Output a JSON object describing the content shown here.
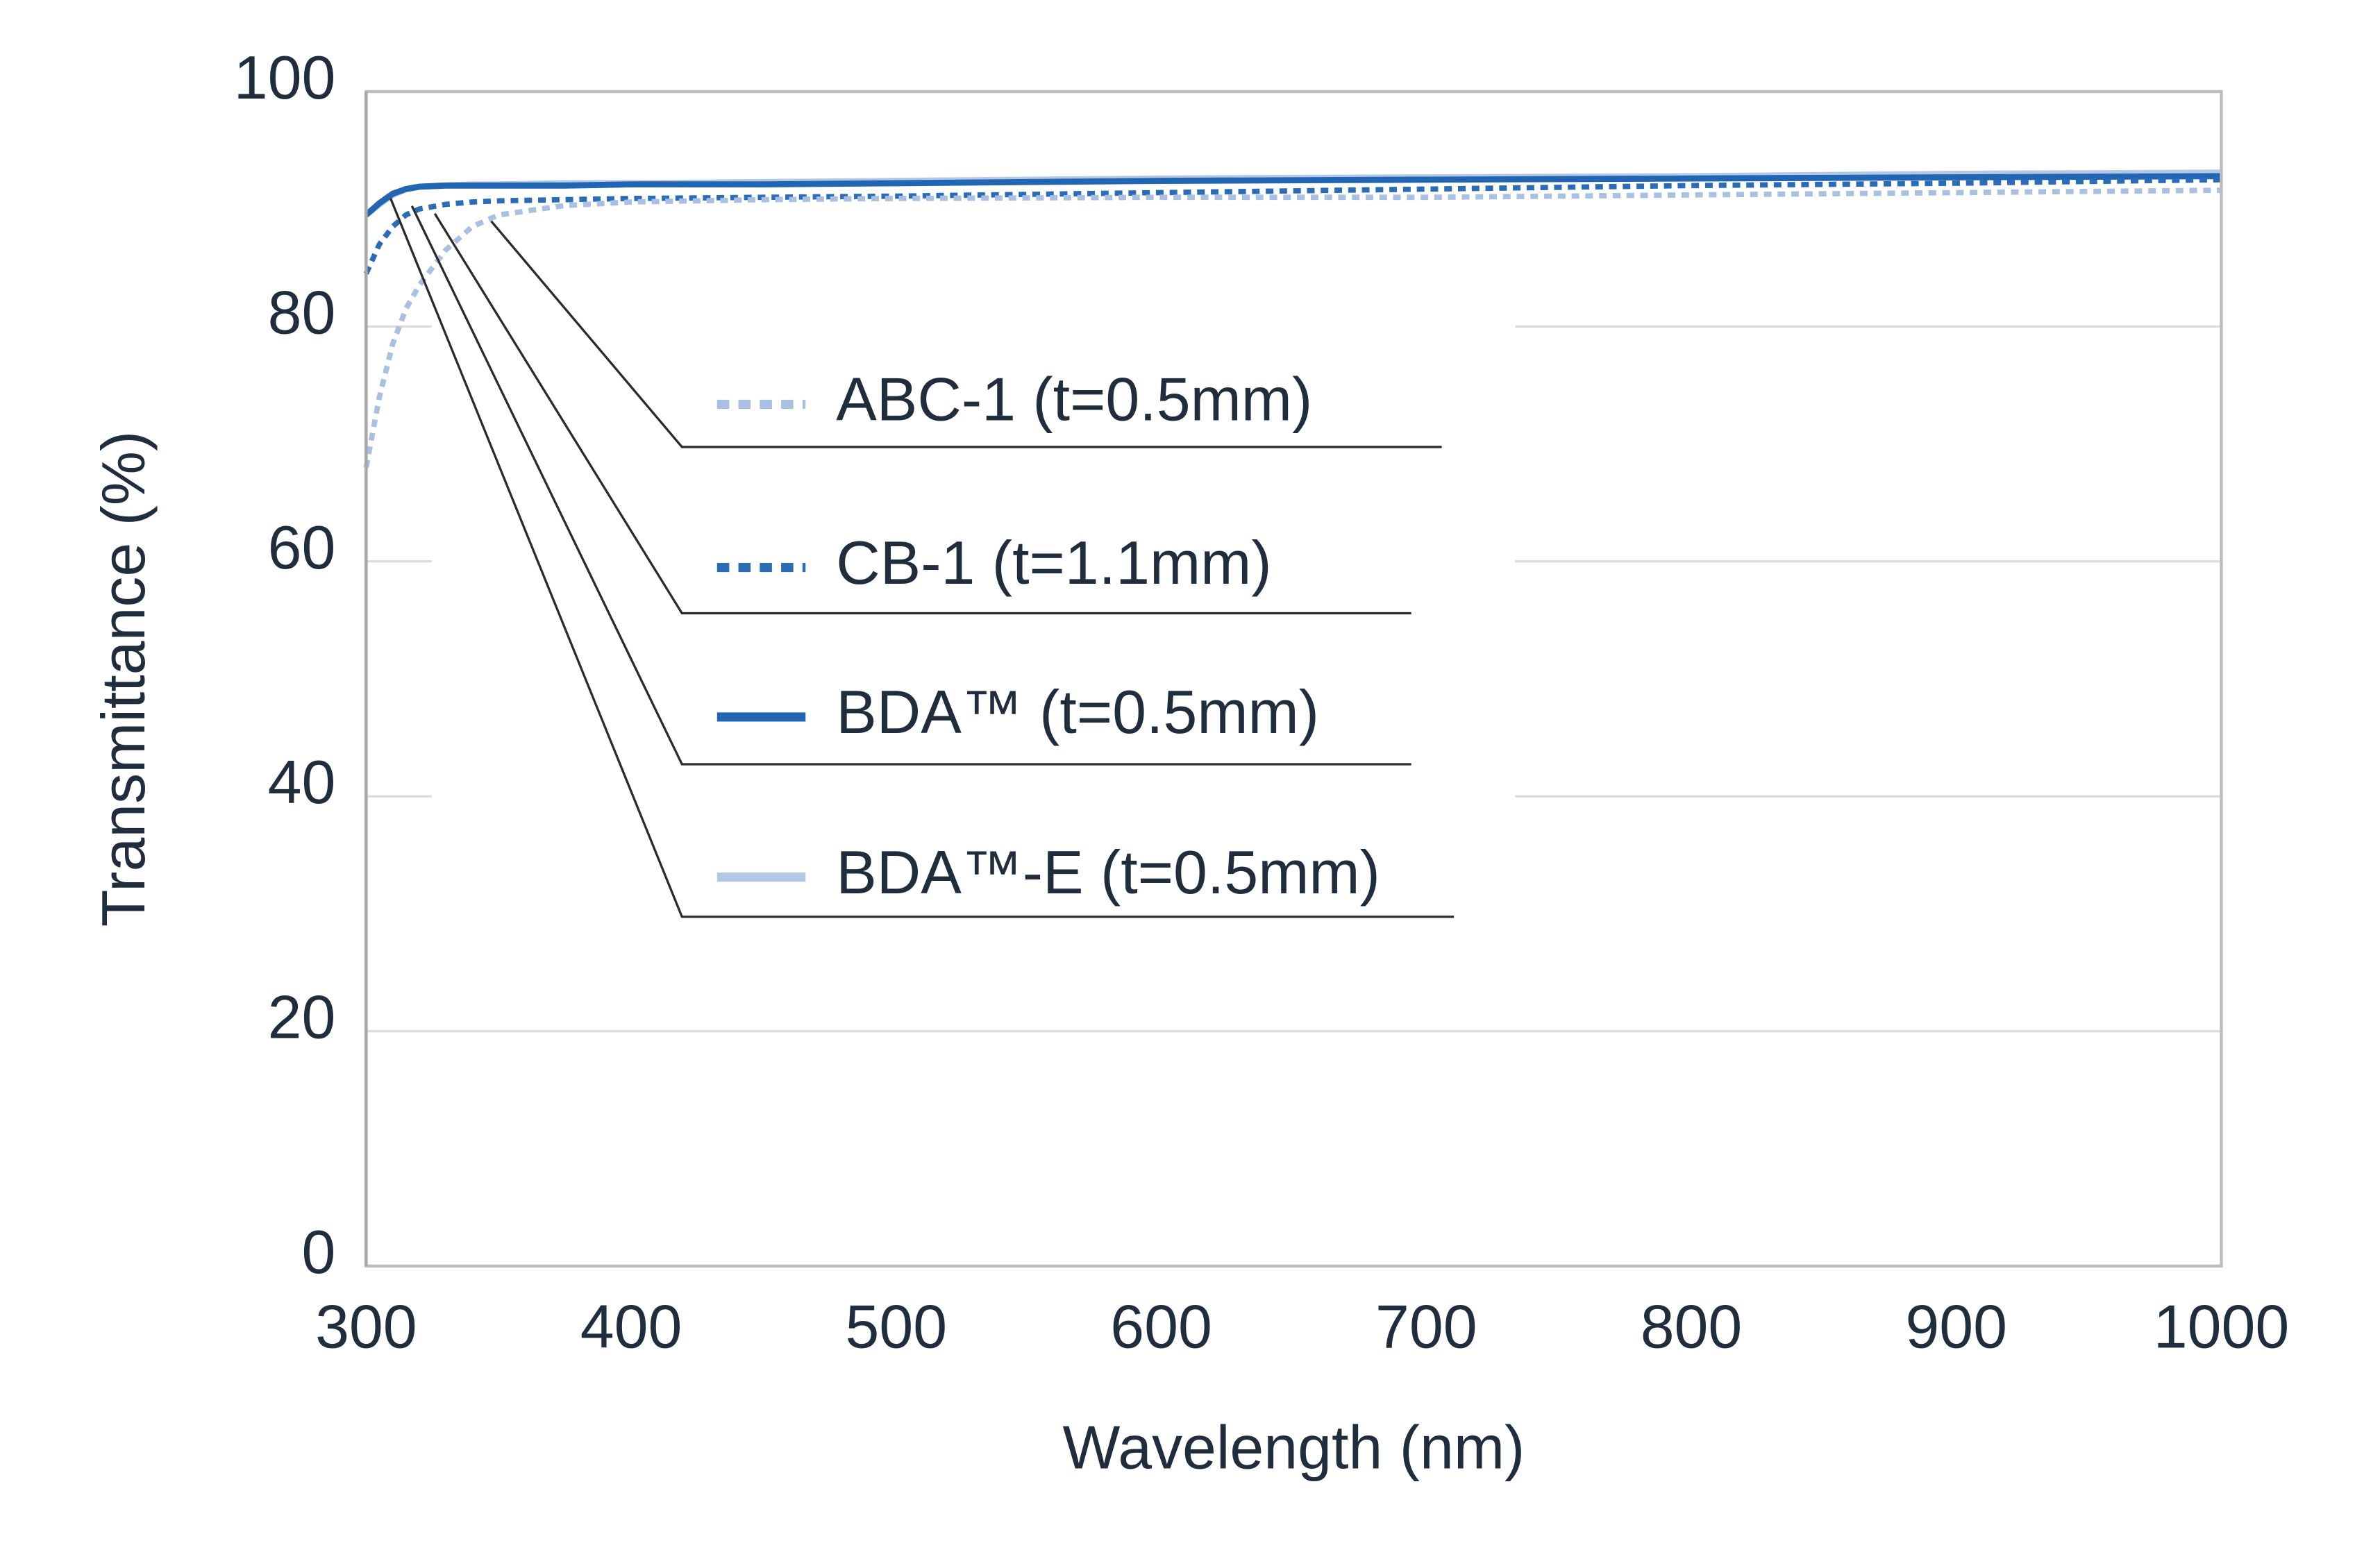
{
  "chart_data": {
    "type": "line",
    "x_label": "Wavelength (nm)",
    "y_label": "Transmittance (%)",
    "x": [
      300,
      305,
      310,
      315,
      320,
      330,
      340,
      350,
      375,
      400,
      450,
      500,
      600,
      700,
      800,
      900,
      1000
    ],
    "series": [
      {
        "name": "ABC-1 (t=0.5mm)",
        "color": "#a9c0e2",
        "style": "dotted",
        "values": [
          68,
          74,
          78.5,
          81.5,
          83.5,
          86.5,
          88.5,
          89.5,
          90.3,
          90.6,
          90.8,
          90.9,
          91,
          91,
          91.2,
          91.4,
          91.6
        ]
      },
      {
        "name": "CB-1 (t=1.1mm)",
        "color": "#2a6cb8",
        "style": "dotted",
        "values": [
          84.5,
          87,
          88.5,
          89.5,
          90,
          90.4,
          90.6,
          90.7,
          90.8,
          90.9,
          91,
          91.1,
          91.4,
          91.7,
          92,
          92.2,
          92.5
        ]
      },
      {
        "name": "BDA™ (t=0.5mm)",
        "color": "#2266b3",
        "style": "solid",
        "values": [
          89.5,
          90.5,
          91.3,
          91.7,
          91.9,
          92,
          92,
          92,
          92,
          92.1,
          92.1,
          92.2,
          92.4,
          92.5,
          92.6,
          92.7,
          92.8
        ]
      },
      {
        "name": "BDA™-E (t=0.5mm)",
        "color": "#b3c7e7",
        "style": "solid",
        "values": [
          89.5,
          90.4,
          91.2,
          91.7,
          91.9,
          92,
          92.1,
          92.1,
          92.2,
          92.2,
          92.3,
          92.4,
          92.6,
          92.7,
          92.8,
          93,
          93.1
        ]
      }
    ],
    "xlim": [
      300,
      1000
    ],
    "xticks": [
      300,
      400,
      500,
      600,
      700,
      800,
      900,
      1000
    ],
    "ylim": [
      0,
      100
    ],
    "yticks": [
      0,
      20,
      40,
      60,
      80,
      100
    ],
    "grid": true
  }
}
